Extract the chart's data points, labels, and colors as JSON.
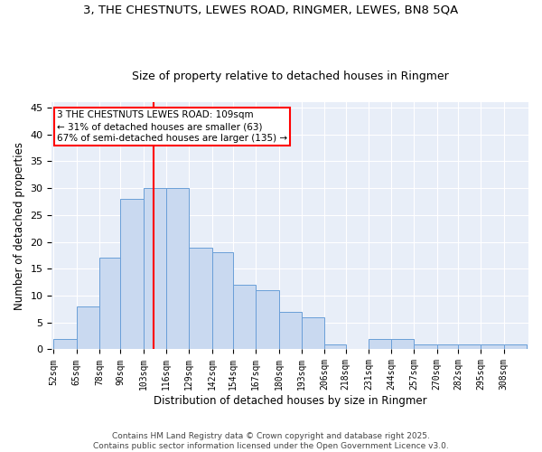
{
  "title_line1": "3, THE CHESTNUTS, LEWES ROAD, RINGMER, LEWES, BN8 5QA",
  "title_line2": "Size of property relative to detached houses in Ringmer",
  "xlabel": "Distribution of detached houses by size in Ringmer",
  "ylabel": "Number of detached properties",
  "bin_labels": [
    "52sqm",
    "65sqm",
    "78sqm",
    "90sqm",
    "103sqm",
    "116sqm",
    "129sqm",
    "142sqm",
    "154sqm",
    "167sqm",
    "180sqm",
    "193sqm",
    "206sqm",
    "218sqm",
    "231sqm",
    "244sqm",
    "257sqm",
    "270sqm",
    "282sqm",
    "295sqm",
    "308sqm"
  ],
  "bin_edges": [
    52,
    65,
    78,
    90,
    103,
    116,
    129,
    142,
    154,
    167,
    180,
    193,
    206,
    218,
    231,
    244,
    257,
    270,
    282,
    295,
    308
  ],
  "values": [
    2,
    8,
    17,
    28,
    30,
    30,
    19,
    18,
    12,
    11,
    7,
    6,
    1,
    0,
    2,
    2,
    1,
    1,
    1,
    1,
    1
  ],
  "bar_color": "#c9d9f0",
  "bar_edge_color": "#6a9fd8",
  "red_line_x": 109,
  "annotation_line1": "3 THE CHESTNUTS LEWES ROAD: 109sqm",
  "annotation_line2": "← 31% of detached houses are smaller (63)",
  "annotation_line3": "67% of semi-detached houses are larger (135) →",
  "annotation_box_color": "white",
  "annotation_box_edge_color": "red",
  "footer_line1": "Contains HM Land Registry data © Crown copyright and database right 2025.",
  "footer_line2": "Contains public sector information licensed under the Open Government Licence v3.0.",
  "ylim": [
    0,
    46
  ],
  "yticks": [
    0,
    5,
    10,
    15,
    20,
    25,
    30,
    35,
    40,
    45
  ],
  "background_color": "#e8eef8",
  "grid_color": "white",
  "title1_fontsize": 9.5,
  "title2_fontsize": 9,
  "annotation_fontsize": 7.5,
  "xlabel_fontsize": 8.5,
  "ylabel_fontsize": 8.5,
  "tick_fontsize": 7,
  "footer_fontsize": 6.5
}
